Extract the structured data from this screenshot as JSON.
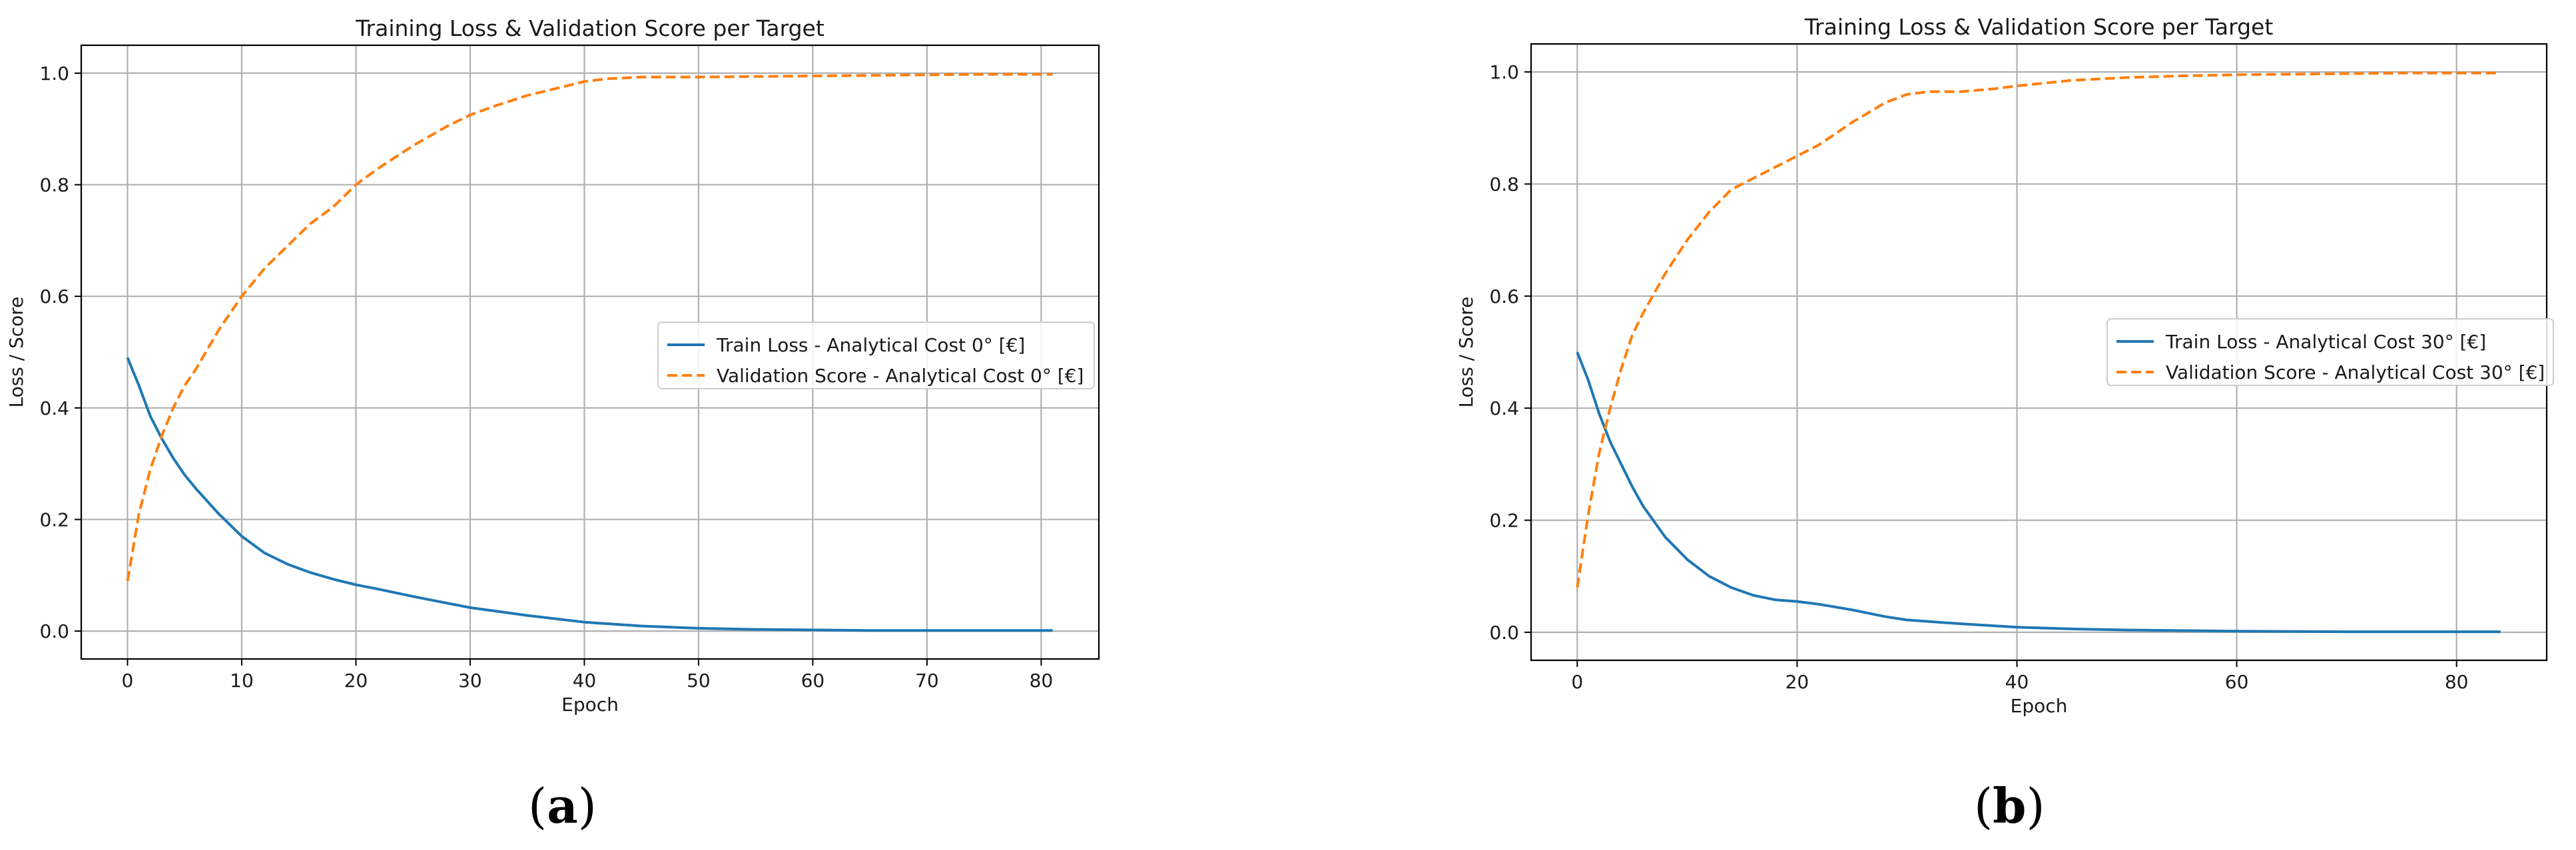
{
  "colors": {
    "train": "#1f77b4",
    "validation": "#ff7f0e",
    "grid": "#b0b0b0",
    "axis": "#000000"
  },
  "chart_data": [
    {
      "type": "line",
      "panel_label": "a",
      "title": "Training Loss & Validation Score per Target",
      "xlabel": "Epoch",
      "ylabel": "Loss / Score",
      "xlim": [
        -4.05,
        85.05
      ],
      "ylim": [
        -0.05,
        1.05
      ],
      "xticks": [
        0,
        10,
        20,
        30,
        40,
        50,
        60,
        70,
        80
      ],
      "yticks": [
        0.0,
        0.2,
        0.4,
        0.6,
        0.8,
        1.0
      ],
      "grid": true,
      "legend_position": "center-right",
      "series": [
        {
          "name": "Train Loss - Analytical Cost 0° [€]",
          "style": "solid",
          "x": [
            0,
            1,
            2,
            3,
            4,
            5,
            6,
            8,
            10,
            12,
            14,
            16,
            18,
            20,
            22,
            25,
            28,
            30,
            35,
            40,
            45,
            50,
            55,
            60,
            65,
            70,
            75,
            81
          ],
          "y": [
            0.49,
            0.44,
            0.385,
            0.345,
            0.31,
            0.28,
            0.255,
            0.21,
            0.17,
            0.14,
            0.12,
            0.105,
            0.093,
            0.083,
            0.075,
            0.062,
            0.05,
            0.042,
            0.028,
            0.016,
            0.009,
            0.005,
            0.003,
            0.002,
            0.001,
            0.001,
            0.001,
            0.001
          ]
        },
        {
          "name": "Validation Score - Analytical Cost 0° [€]",
          "style": "dashed",
          "x": [
            0,
            1,
            2,
            3,
            4,
            5,
            6,
            8,
            10,
            12,
            14,
            16,
            18,
            20,
            22,
            25,
            28,
            30,
            32,
            35,
            38,
            40,
            42,
            45,
            50,
            55,
            60,
            65,
            70,
            75,
            81
          ],
          "y": [
            0.09,
            0.21,
            0.29,
            0.35,
            0.4,
            0.44,
            0.47,
            0.54,
            0.6,
            0.65,
            0.69,
            0.73,
            0.76,
            0.8,
            0.83,
            0.87,
            0.905,
            0.925,
            0.94,
            0.96,
            0.975,
            0.985,
            0.99,
            0.993,
            0.993,
            0.994,
            0.995,
            0.996,
            0.997,
            0.998,
            0.998
          ]
        }
      ]
    },
    {
      "type": "line",
      "panel_label": "b",
      "title": "Training Loss & Validation Score per Target",
      "xlabel": "Epoch",
      "ylabel": "Loss / Score",
      "xlim": [
        -4.2,
        88.2
      ],
      "ylim": [
        -0.05,
        1.05
      ],
      "xticks": [
        0,
        20,
        40,
        60,
        80
      ],
      "yticks": [
        0.0,
        0.2,
        0.4,
        0.6,
        0.8,
        1.0
      ],
      "grid": true,
      "legend_position": "center-right",
      "series": [
        {
          "name": "Train Loss - Analytical Cost 30° [€]",
          "style": "solid",
          "x": [
            0,
            1,
            2,
            3,
            4,
            5,
            6,
            8,
            10,
            12,
            14,
            16,
            18,
            20,
            22,
            25,
            28,
            30,
            35,
            40,
            45,
            50,
            55,
            60,
            70,
            80,
            84
          ],
          "y": [
            0.5,
            0.45,
            0.39,
            0.34,
            0.3,
            0.26,
            0.225,
            0.17,
            0.13,
            0.1,
            0.08,
            0.066,
            0.058,
            0.055,
            0.05,
            0.04,
            0.028,
            0.022,
            0.015,
            0.009,
            0.006,
            0.004,
            0.003,
            0.002,
            0.001,
            0.001,
            0.001
          ]
        },
        {
          "name": "Validation Score - Analytical Cost 30° [€]",
          "style": "dashed",
          "x": [
            0,
            1,
            2,
            3,
            4,
            5,
            6,
            8,
            10,
            12,
            14,
            16,
            18,
            20,
            22,
            25,
            28,
            30,
            32,
            35,
            38,
            40,
            45,
            50,
            55,
            60,
            65,
            70,
            75,
            80,
            84
          ],
          "y": [
            0.08,
            0.21,
            0.32,
            0.4,
            0.47,
            0.53,
            0.57,
            0.64,
            0.7,
            0.75,
            0.79,
            0.81,
            0.83,
            0.85,
            0.87,
            0.91,
            0.945,
            0.96,
            0.965,
            0.965,
            0.97,
            0.975,
            0.985,
            0.99,
            0.993,
            0.995,
            0.996,
            0.997,
            0.998,
            0.998,
            0.998
          ]
        }
      ]
    }
  ]
}
